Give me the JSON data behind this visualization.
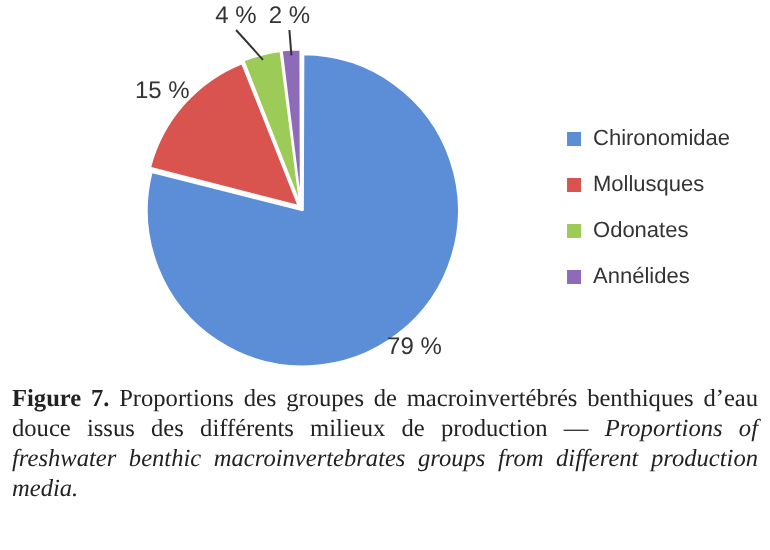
{
  "chart_data": {
    "type": "pie",
    "categories": [
      "Chironomidae",
      "Mollusques",
      "Odonates",
      "Annélides"
    ],
    "values": [
      79,
      15,
      4,
      2
    ],
    "colors": [
      "#5b8ed6",
      "#d9534f",
      "#9ccc57",
      "#8d6bb8"
    ],
    "value_labels": [
      "79 %",
      "15 %",
      "4 %",
      "2 %"
    ],
    "legend": "right",
    "annotations": [
      "Figure 7.",
      "Proportions des groupes de macroinvertébrés benthiques d’eau douce issus des différents milieux de production —",
      "Proportions of freshwater benthic macroinvertebrates groups from different production media."
    ]
  }
}
